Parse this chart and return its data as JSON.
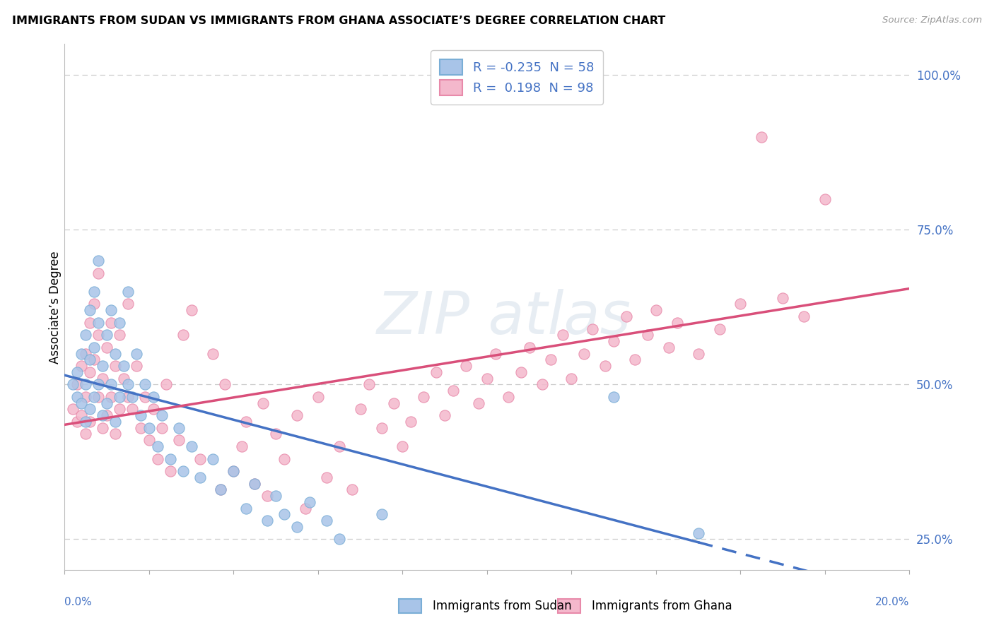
{
  "title": "IMMIGRANTS FROM SUDAN VS IMMIGRANTS FROM GHANA ASSOCIATE’S DEGREE CORRELATION CHART",
  "source": "Source: ZipAtlas.com",
  "ylabel_label": "Associate’s Degree",
  "legend_label1": "Immigrants from Sudan",
  "legend_label2": "Immigrants from Ghana",
  "r1": -0.235,
  "n1": 58,
  "r2": 0.198,
  "n2": 98,
  "color_sudan_fill": "#a8c4e8",
  "color_sudan_edge": "#7aaed6",
  "color_ghana_fill": "#f4b8cc",
  "color_ghana_edge": "#e88aaa",
  "color_trend_sudan": "#4472C4",
  "color_trend_ghana": "#d94f7a",
  "color_text_blue": "#4472C4",
  "color_grid": "#cccccc",
  "xmin": 0.0,
  "xmax": 0.2,
  "ymin": 0.2,
  "ymax": 1.05,
  "sudan_x": [
    0.002,
    0.003,
    0.003,
    0.004,
    0.004,
    0.005,
    0.005,
    0.005,
    0.006,
    0.006,
    0.006,
    0.007,
    0.007,
    0.007,
    0.008,
    0.008,
    0.008,
    0.009,
    0.009,
    0.01,
    0.01,
    0.011,
    0.011,
    0.012,
    0.012,
    0.013,
    0.013,
    0.014,
    0.015,
    0.015,
    0.016,
    0.017,
    0.018,
    0.019,
    0.02,
    0.021,
    0.022,
    0.023,
    0.025,
    0.027,
    0.028,
    0.03,
    0.032,
    0.035,
    0.037,
    0.04,
    0.043,
    0.045,
    0.048,
    0.05,
    0.052,
    0.055,
    0.058,
    0.062,
    0.065,
    0.075,
    0.13,
    0.15
  ],
  "sudan_y": [
    0.5,
    0.52,
    0.48,
    0.55,
    0.47,
    0.58,
    0.5,
    0.44,
    0.62,
    0.54,
    0.46,
    0.65,
    0.56,
    0.48,
    0.7,
    0.6,
    0.5,
    0.53,
    0.45,
    0.58,
    0.47,
    0.62,
    0.5,
    0.55,
    0.44,
    0.6,
    0.48,
    0.53,
    0.65,
    0.5,
    0.48,
    0.55,
    0.45,
    0.5,
    0.43,
    0.48,
    0.4,
    0.45,
    0.38,
    0.43,
    0.36,
    0.4,
    0.35,
    0.38,
    0.33,
    0.36,
    0.3,
    0.34,
    0.28,
    0.32,
    0.29,
    0.27,
    0.31,
    0.28,
    0.25,
    0.29,
    0.48,
    0.26
  ],
  "ghana_x": [
    0.002,
    0.003,
    0.003,
    0.004,
    0.004,
    0.005,
    0.005,
    0.005,
    0.006,
    0.006,
    0.006,
    0.007,
    0.007,
    0.008,
    0.008,
    0.008,
    0.009,
    0.009,
    0.01,
    0.01,
    0.011,
    0.011,
    0.012,
    0.012,
    0.013,
    0.013,
    0.014,
    0.015,
    0.015,
    0.016,
    0.017,
    0.018,
    0.019,
    0.02,
    0.021,
    0.022,
    0.023,
    0.024,
    0.025,
    0.027,
    0.028,
    0.03,
    0.032,
    0.035,
    0.037,
    0.038,
    0.04,
    0.042,
    0.043,
    0.045,
    0.047,
    0.048,
    0.05,
    0.052,
    0.055,
    0.057,
    0.06,
    0.062,
    0.065,
    0.068,
    0.07,
    0.072,
    0.075,
    0.078,
    0.08,
    0.082,
    0.085,
    0.088,
    0.09,
    0.092,
    0.095,
    0.098,
    0.1,
    0.102,
    0.105,
    0.108,
    0.11,
    0.113,
    0.115,
    0.118,
    0.12,
    0.123,
    0.125,
    0.128,
    0.13,
    0.133,
    0.135,
    0.138,
    0.14,
    0.143,
    0.145,
    0.15,
    0.155,
    0.16,
    0.165,
    0.17,
    0.175,
    0.18
  ],
  "ghana_y": [
    0.46,
    0.5,
    0.44,
    0.53,
    0.45,
    0.55,
    0.48,
    0.42,
    0.6,
    0.52,
    0.44,
    0.63,
    0.54,
    0.68,
    0.58,
    0.48,
    0.51,
    0.43,
    0.56,
    0.45,
    0.6,
    0.48,
    0.53,
    0.42,
    0.58,
    0.46,
    0.51,
    0.63,
    0.48,
    0.46,
    0.53,
    0.43,
    0.48,
    0.41,
    0.46,
    0.38,
    0.43,
    0.5,
    0.36,
    0.41,
    0.58,
    0.62,
    0.38,
    0.55,
    0.33,
    0.5,
    0.36,
    0.4,
    0.44,
    0.34,
    0.47,
    0.32,
    0.42,
    0.38,
    0.45,
    0.3,
    0.48,
    0.35,
    0.4,
    0.33,
    0.46,
    0.5,
    0.43,
    0.47,
    0.4,
    0.44,
    0.48,
    0.52,
    0.45,
    0.49,
    0.53,
    0.47,
    0.51,
    0.55,
    0.48,
    0.52,
    0.56,
    0.5,
    0.54,
    0.58,
    0.51,
    0.55,
    0.59,
    0.53,
    0.57,
    0.61,
    0.54,
    0.58,
    0.62,
    0.56,
    0.6,
    0.55,
    0.59,
    0.63,
    0.9,
    0.64,
    0.61,
    0.8
  ],
  "sudan_trend_x0": 0.0,
  "sudan_trend_x_solid_end": 0.15,
  "sudan_trend_x_dash_end": 0.2,
  "sudan_trend_y0": 0.515,
  "sudan_trend_slope": -1.8,
  "ghana_trend_x0": 0.0,
  "ghana_trend_x_end": 0.2,
  "ghana_trend_y0": 0.435,
  "ghana_trend_slope": 1.1
}
